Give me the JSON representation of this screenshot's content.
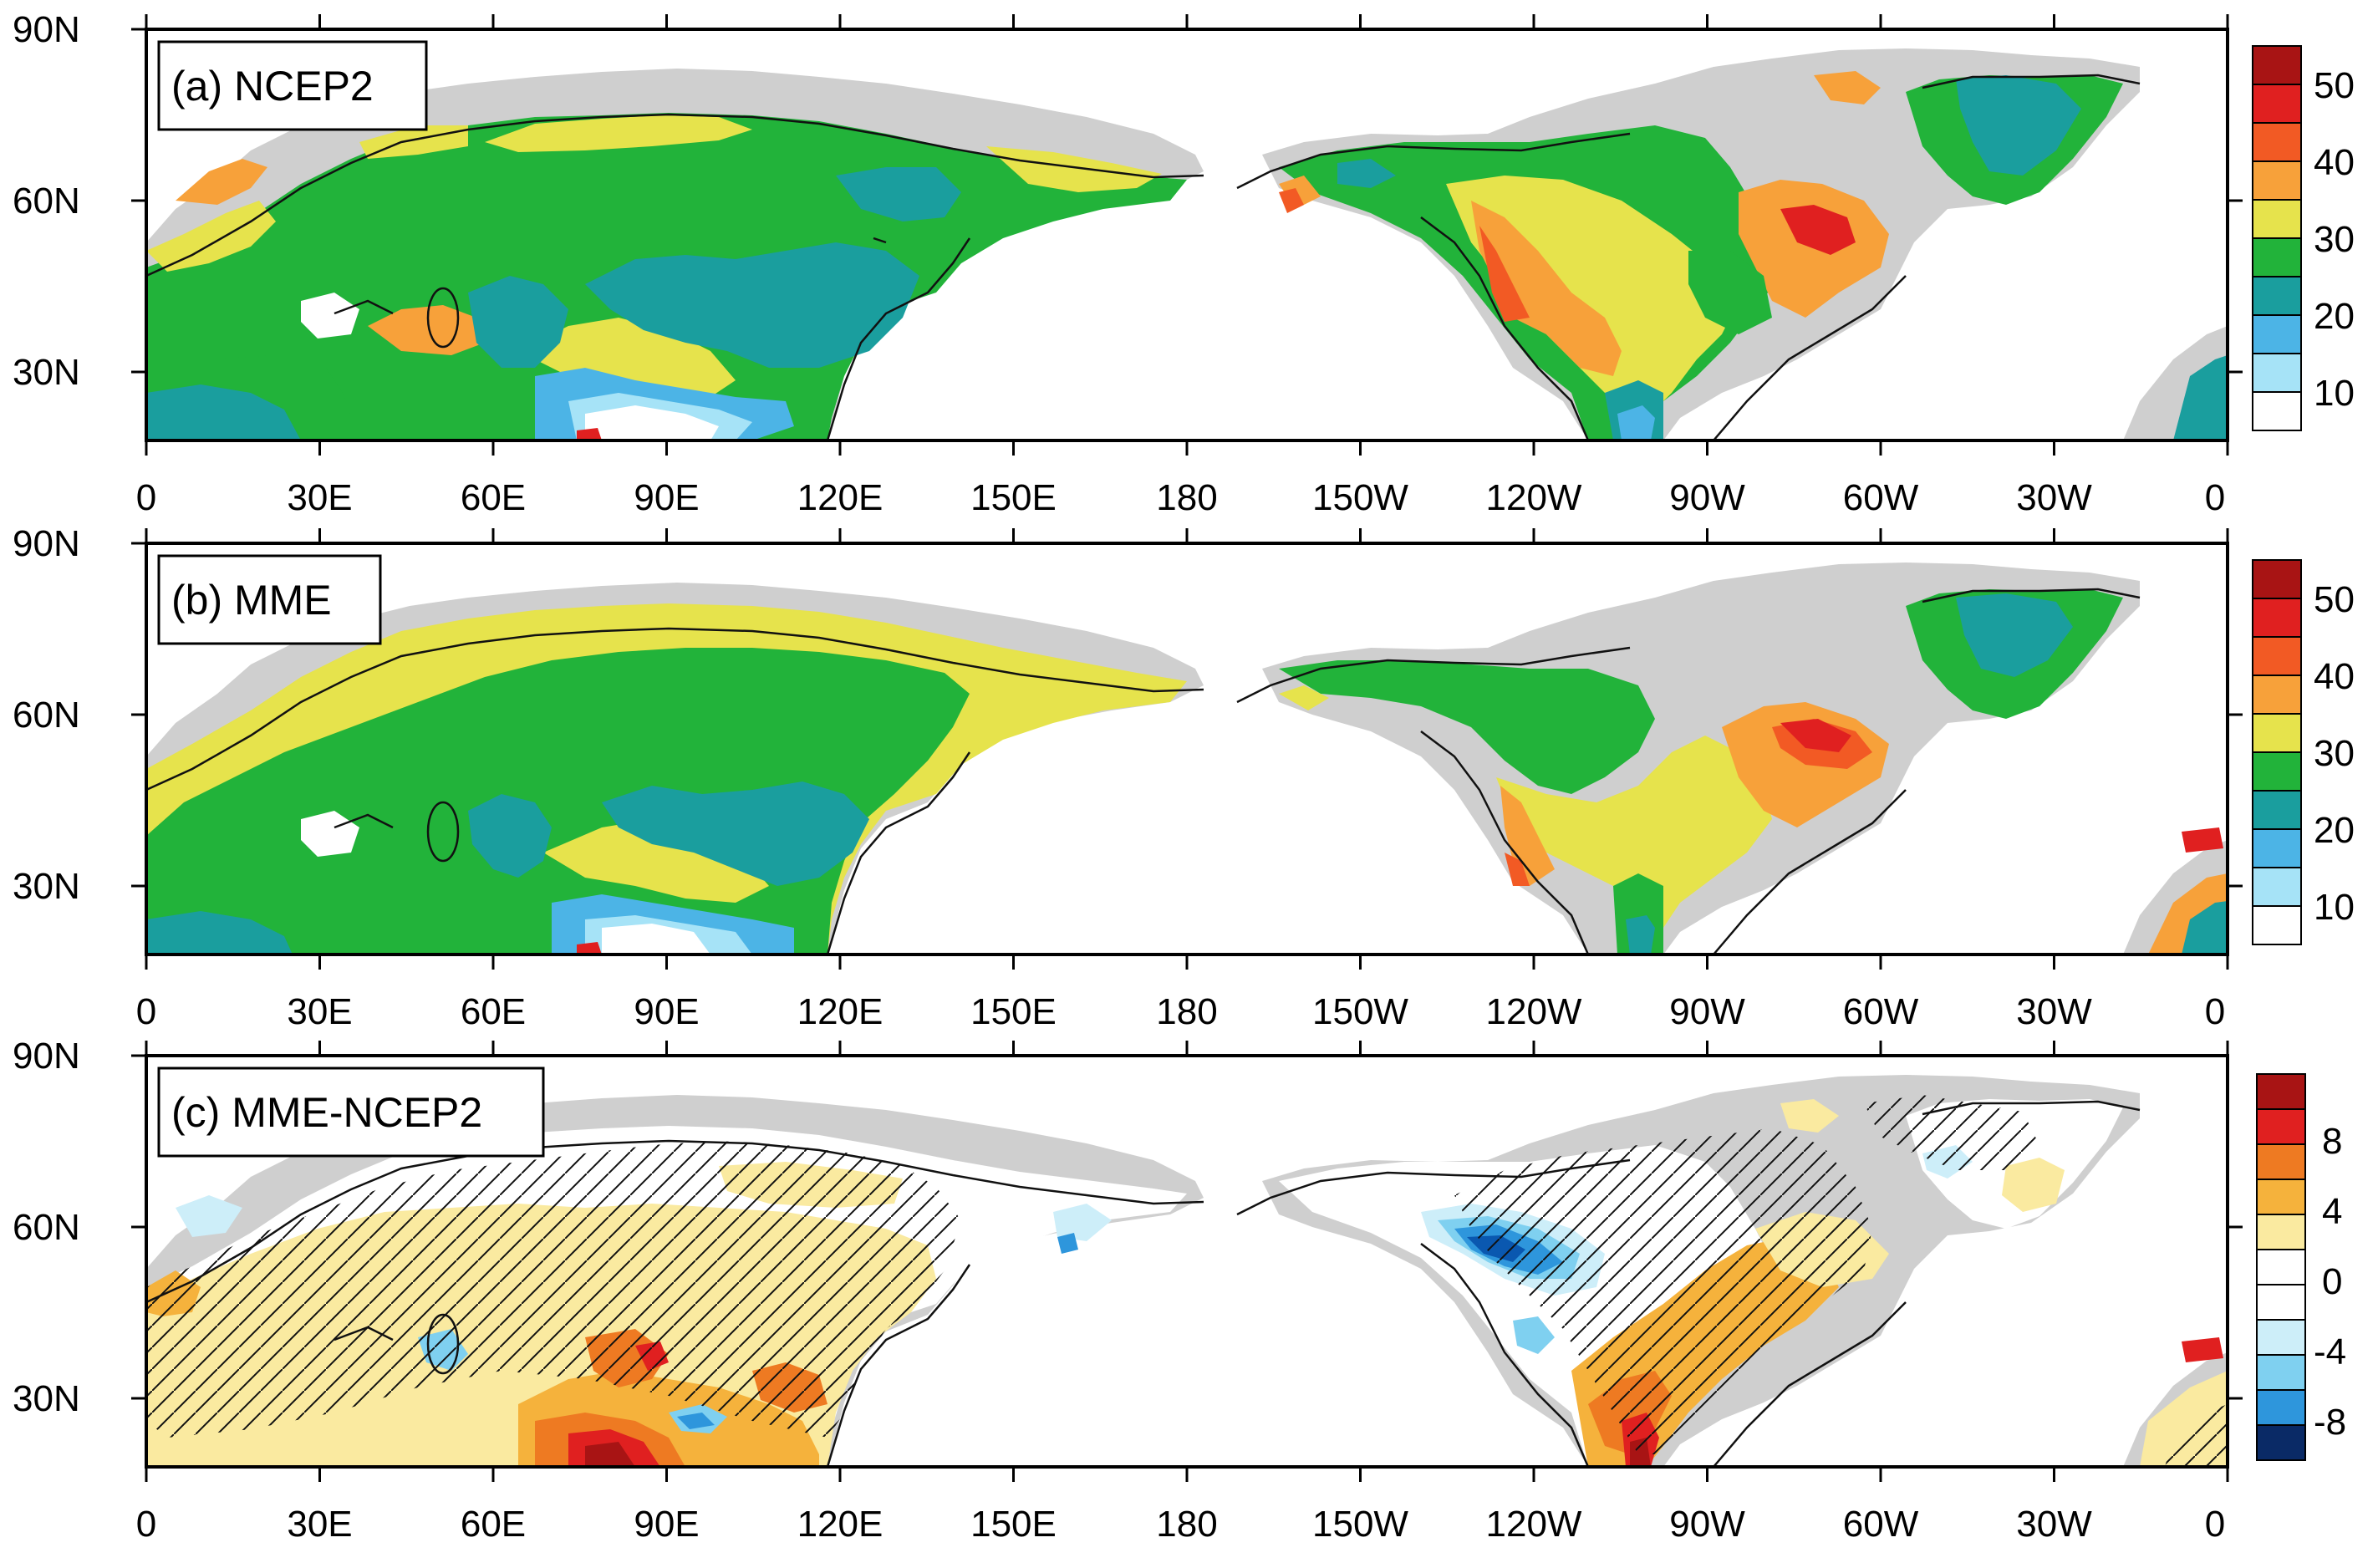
{
  "x_ticks": [
    "0",
    "30E",
    "60E",
    "90E",
    "120E",
    "150E",
    "180",
    "150W",
    "120W",
    "90W",
    "60W",
    "30W",
    "0"
  ],
  "y_ticks": [
    "90N",
    "60N",
    "30N"
  ],
  "colors": {
    "white": "#ffffff",
    "lightblue": "#a6e3f7",
    "blue": "#4cb4e6",
    "teal": "#1a9e9e",
    "green": "#22b33a",
    "yellow": "#e6e34c",
    "orange": "#f7a13a",
    "redorange": "#f25a24",
    "red": "#e02020",
    "darkred": "#a81414",
    "land_missing": "#cfcfcf",
    "diff_yellow": "#faeaa0",
    "diff_orange": "#f5b23c",
    "diff_darkorange": "#ee7a22",
    "diff_red": "#e02020",
    "diff_darkred": "#a81414",
    "diff_lightblue": "#cdeef9",
    "diff_blue1": "#7fd0f0",
    "diff_blue2": "#2e96dc",
    "diff_blue3": "#0a58b0",
    "diff_navy": "#0a2a66"
  },
  "panels": [
    {
      "title": "(a) NCEP2",
      "colorbar_labels": [
        "50",
        "40",
        "30",
        "20",
        "10"
      ]
    },
    {
      "title": "(b) MME",
      "colorbar_labels": [
        "50",
        "40",
        "30",
        "20",
        "10"
      ]
    },
    {
      "title": "(c) MME-NCEP2",
      "colorbar_labels": [
        "8",
        "4",
        "0",
        "-4",
        "-8"
      ]
    }
  ]
}
